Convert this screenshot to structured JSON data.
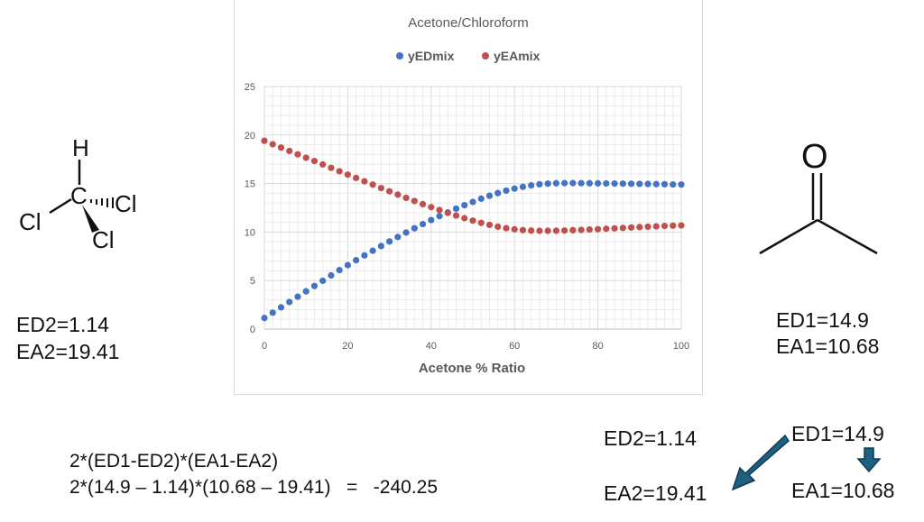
{
  "chloroform": {
    "atoms": {
      "h": "H",
      "c": "C",
      "cl_left": "Cl",
      "cl_right": "Cl",
      "cl_bottom": "Cl"
    },
    "ed": "ED2=1.14",
    "ea": "EA2=19.41"
  },
  "acetone": {
    "atoms": {
      "o": "O"
    },
    "ed": "ED1=14.9",
    "ea": "EA1=10.68"
  },
  "formula": {
    "line1": "2*(ED1-ED2)*(EA1-EA2)",
    "line2": "2*(14.9 – 1.14)*(10.68 – 19.41)   =   -240.25"
  },
  "arrows": {
    "ed2": "ED2=1.14",
    "ea2": "EA2=19.41",
    "ed1": "ED1=14.9",
    "ea1": "EA1=10.68",
    "arrow_color": "#1f5f82"
  },
  "chart_data": {
    "type": "scatter",
    "title": "Acetone/Chloroform",
    "xlabel": "Acetone % Ratio",
    "ylabel": "",
    "xlim": [
      0,
      100
    ],
    "ylim": [
      0,
      25
    ],
    "xticks": [
      "0",
      "20",
      "40",
      "60",
      "80",
      "100"
    ],
    "yticks": [
      "0",
      "5",
      "10",
      "15",
      "20",
      "25"
    ],
    "grid": true,
    "legend": "top",
    "x": [
      0,
      2,
      4,
      6,
      8,
      10,
      12,
      14,
      16,
      18,
      20,
      22,
      24,
      26,
      28,
      30,
      32,
      34,
      36,
      38,
      40,
      42,
      44,
      46,
      48,
      50,
      52,
      54,
      56,
      58,
      60,
      62,
      64,
      66,
      68,
      70,
      72,
      74,
      76,
      78,
      80,
      82,
      84,
      86,
      88,
      90,
      92,
      94,
      96,
      98,
      100
    ],
    "series": [
      {
        "name": "yEDmix",
        "color": "#4472c4",
        "values": [
          1.14,
          1.69,
          2.24,
          2.79,
          3.34,
          3.89,
          4.44,
          4.98,
          5.53,
          6.08,
          6.59,
          7.1,
          7.59,
          8.08,
          8.56,
          9.03,
          9.49,
          9.95,
          10.39,
          10.82,
          11.24,
          11.64,
          12.03,
          12.41,
          12.77,
          13.11,
          13.44,
          13.74,
          14.02,
          14.27,
          14.48,
          14.66,
          14.81,
          14.92,
          14.99,
          15.03,
          15.05,
          15.05,
          15.04,
          15.03,
          15.02,
          15.01,
          15.0,
          14.99,
          14.98,
          14.97,
          14.96,
          14.94,
          14.93,
          14.91,
          14.9
        ]
      },
      {
        "name": "yEAmix",
        "color": "#c0504d",
        "values": [
          19.41,
          19.06,
          18.71,
          18.36,
          18.01,
          17.66,
          17.32,
          16.97,
          16.62,
          16.27,
          15.92,
          15.58,
          15.23,
          14.89,
          14.54,
          14.2,
          13.86,
          13.53,
          13.2,
          12.88,
          12.57,
          12.27,
          11.98,
          11.7,
          11.43,
          11.18,
          10.95,
          10.74,
          10.56,
          10.4,
          10.28,
          10.2,
          10.15,
          10.13,
          10.13,
          10.14,
          10.16,
          10.19,
          10.22,
          10.26,
          10.3,
          10.34,
          10.38,
          10.42,
          10.47,
          10.51,
          10.55,
          10.59,
          10.63,
          10.66,
          10.68
        ]
      }
    ]
  }
}
